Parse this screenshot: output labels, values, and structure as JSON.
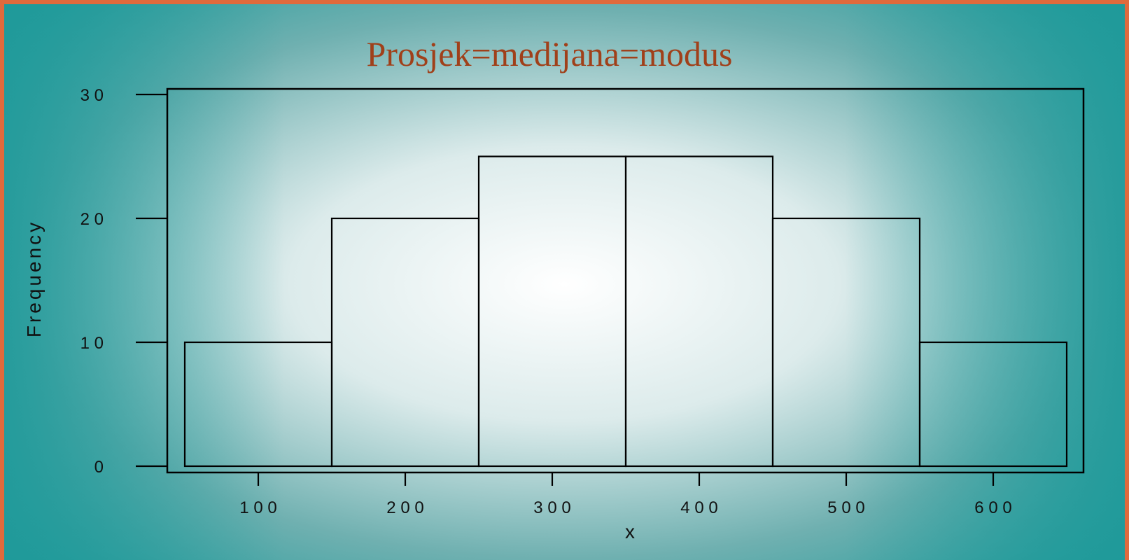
{
  "chart_data": {
    "type": "bar",
    "title": "Prosjek=medijana=modus",
    "xlabel": "x",
    "ylabel": "Frequency",
    "categories": [
      100,
      200,
      300,
      400,
      500,
      600
    ],
    "values": [
      10,
      20,
      25,
      25,
      20,
      10
    ],
    "bin_width": 100,
    "xlim": [
      50,
      650
    ],
    "ylim": [
      0,
      30
    ],
    "yticks": [
      0,
      10,
      20,
      30
    ],
    "xtick_labels": [
      "1 0 0",
      "2 0 0",
      "3 0 0",
      "4 0 0",
      "5 0 0",
      "6 0 0"
    ],
    "ytick_labels": [
      "0",
      "1 0",
      "2 0",
      "3 0"
    ],
    "grid": false,
    "legend": "none"
  },
  "colors": {
    "title": "#a0401a",
    "background_edge": "#1f9a9a",
    "background_center": "#ffffff",
    "border": "#e06a3c",
    "bar_outline": "#000000"
  }
}
